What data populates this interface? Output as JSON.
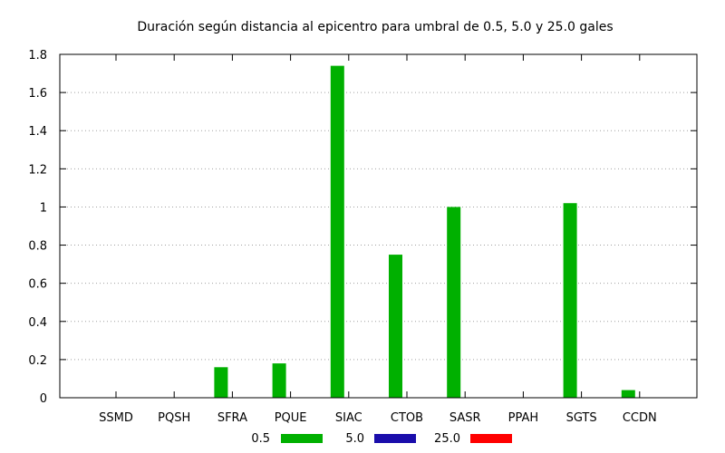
{
  "chart_data": {
    "type": "bar",
    "title": "Duración según distancia al epicentro para umbral de 0.5, 5.0 y 25.0 gales",
    "xlabel": "",
    "ylabel": "",
    "categories": [
      "SSMD",
      "PQSH",
      "SFRA",
      "PQUE",
      "SIAC",
      "CTOB",
      "SASR",
      "PPAH",
      "SGTS",
      "CCDN"
    ],
    "series": [
      {
        "name": "0.5",
        "color": "#00b000",
        "values": [
          0,
          0,
          0.16,
          0.18,
          1.74,
          0.75,
          1.0,
          0,
          1.02,
          0.04
        ]
      },
      {
        "name": "5.0",
        "color": "#1a0dab",
        "values": [
          0,
          0,
          0,
          0,
          0,
          0,
          0,
          0,
          0,
          0
        ]
      },
      {
        "name": "25.0",
        "color": "#ff0000",
        "values": [
          0,
          0,
          0,
          0,
          0,
          0,
          0,
          0,
          0,
          0
        ]
      }
    ],
    "ylim": [
      0,
      1.8
    ],
    "yticks": [
      "0",
      "0.2",
      "0.4",
      "0.6",
      "0.8",
      "1",
      "1.2",
      "1.4",
      "1.6",
      "1.8"
    ],
    "grid": true,
    "legend_position": "bottom"
  }
}
